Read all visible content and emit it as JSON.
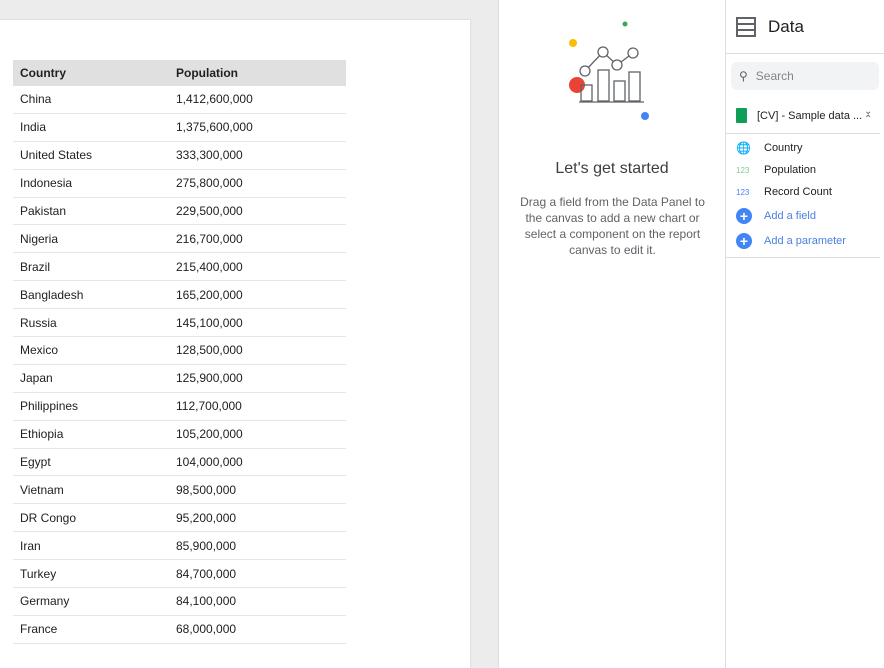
{
  "table": {
    "headers": [
      "Country",
      "Population"
    ],
    "rows": [
      [
        "China",
        "1,412,600,000"
      ],
      [
        "India",
        "1,375,600,000"
      ],
      [
        "United States",
        "333,300,000"
      ],
      [
        "Indonesia",
        "275,800,000"
      ],
      [
        "Pakistan",
        "229,500,000"
      ],
      [
        "Nigeria",
        "216,700,000"
      ],
      [
        "Brazil",
        "215,400,000"
      ],
      [
        "Bangladesh",
        "165,200,000"
      ],
      [
        "Russia",
        "145,100,000"
      ],
      [
        "Mexico",
        "128,500,000"
      ],
      [
        "Japan",
        "125,900,000"
      ],
      [
        "Philippines",
        "112,700,000"
      ],
      [
        "Ethiopia",
        "105,200,000"
      ],
      [
        "Egypt",
        "104,000,000"
      ],
      [
        "Vietnam",
        "98,500,000"
      ],
      [
        "DR Congo",
        "95,200,000"
      ],
      [
        "Iran",
        "85,900,000"
      ],
      [
        "Turkey",
        "84,700,000"
      ],
      [
        "Germany",
        "84,100,000"
      ],
      [
        "France",
        "68,000,000"
      ]
    ]
  },
  "empty_state": {
    "title": "Let's get started",
    "text": "Drag a field from the Data Panel to the canvas to add a new chart or select a component on the report canvas to edit it."
  },
  "data_panel": {
    "title": "Data",
    "search_placeholder": "Search",
    "source": "[CV] - Sample data ...",
    "fields": [
      {
        "type": "geo",
        "label": "Country",
        "color": "#81c995"
      },
      {
        "type": "123",
        "label": "Population",
        "color": "#81c995"
      },
      {
        "type": "123",
        "label": "Record Count",
        "color": "#4285f4"
      }
    ],
    "add_field": "Add a field",
    "add_parameter": "Add a parameter"
  }
}
